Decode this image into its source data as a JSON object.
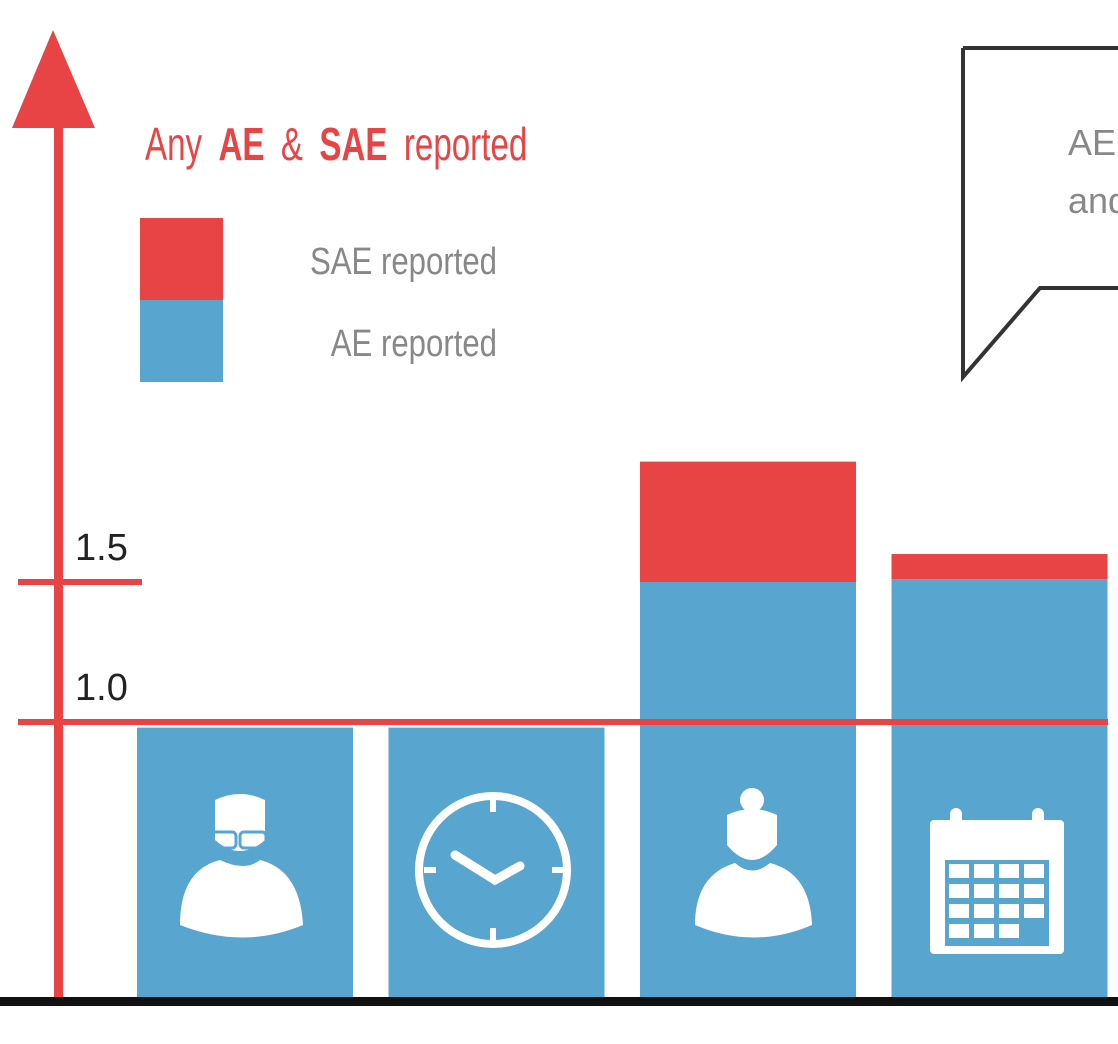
{
  "chart_data": {
    "type": "stacked-bar",
    "title": {
      "parts": [
        "Any",
        "AE",
        "&",
        "SAE",
        "reported"
      ]
    },
    "callout": [
      "AE",
      "and"
    ],
    "categories": [
      null,
      null,
      null,
      null
    ],
    "series": [
      {
        "name": "AE reported",
        "color": "#58a5cf",
        "values": [
          0.98,
          0.98,
          1.5,
          1.51
        ]
      },
      {
        "name": "SAE reported",
        "color": "#e84445",
        "values": [
          0,
          0,
          0.43,
          0.09
        ]
      }
    ],
    "ylim": [
      0,
      3.5
    ],
    "yticks": [
      {
        "value": 1,
        "label": "1.0"
      },
      1.5
    ],
    "reference_line": 1,
    "axis_color": "#e84445"
  }
}
